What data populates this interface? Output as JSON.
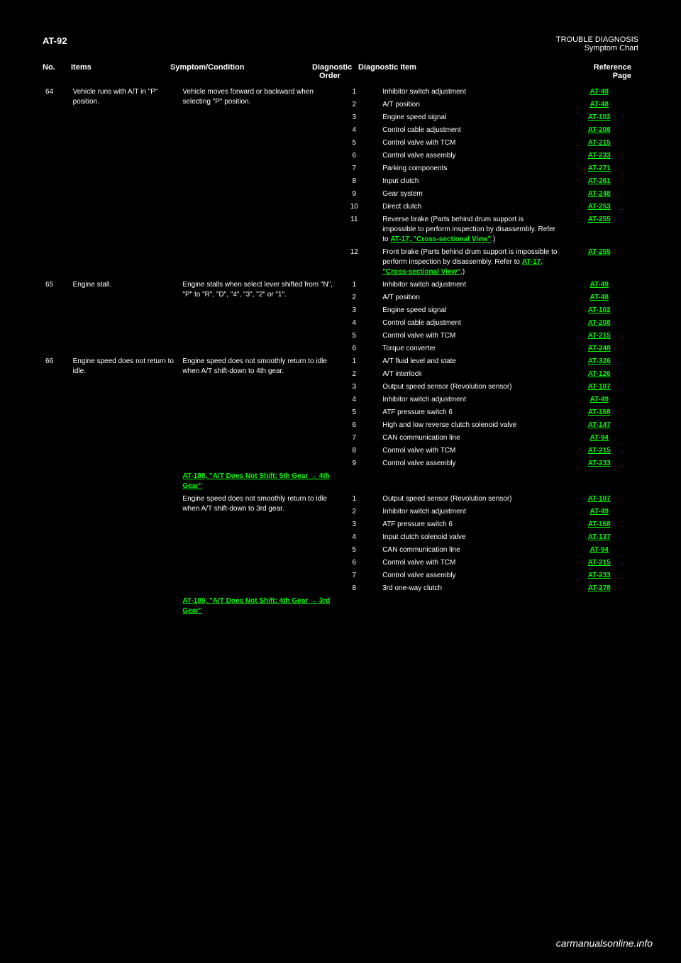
{
  "header": {
    "pageId": "AT-92",
    "section": "TROUBLE DIAGNOSIS",
    "subsection": "Symptom Chart"
  },
  "columnHeaders": {
    "no": "No.",
    "items": "Items",
    "symptomCondition": "Symptom/Condition",
    "diagOrder": "Diagnostic\nOrder",
    "diagItem": "Diagnostic Item",
    "refPage": "Reference\nPage"
  },
  "footer": "carmanualsonline.info",
  "rows": [
    {
      "no": "64",
      "item": "Vehicle runs with A/T in \"P\" position.",
      "symptom": "Vehicle moves forward or backward when selecting \"P\" position.",
      "lines": [
        {
          "order": "1",
          "diag": "Inhibitor switch adjustment",
          "ref": "AT-49",
          "link": true
        },
        {
          "order": "2",
          "diag": "A/T position",
          "ref": "AT-48",
          "link": true
        },
        {
          "order": "3",
          "diag": "Engine speed signal",
          "ref": "AT-102",
          "link": true
        },
        {
          "order": "4",
          "diag": "Control cable adjustment",
          "ref": "AT-208",
          "link": true
        },
        {
          "order": "5",
          "diag": "Control valve with TCM",
          "ref": "AT-215",
          "link": true
        },
        {
          "order": "6",
          "diag": "Control valve assembly",
          "ref": "AT-233",
          "link": true
        },
        {
          "order": "7",
          "diag": "Parking components",
          "ref": "AT-271",
          "link": true
        },
        {
          "order": "8",
          "diag": "Input clutch",
          "ref": "AT-261",
          "link": true
        },
        {
          "order": "9",
          "diag": "Gear system",
          "ref": "AT-248",
          "link": true
        },
        {
          "order": "10",
          "diag": "Direct clutch",
          "ref": "AT-253",
          "link": true
        }
      ]
    },
    {
      "no": "",
      "item": "",
      "symptom": "",
      "lines": [
        {
          "order": "11",
          "diag": "Reverse brake (Parts behind drum support is impossible to perform inspection by disassembly. Refer to <a class='link' data-name='link-at17a' data-interactable='true' href='#'>AT-17, \"Cross-sectional View\"</a>.)",
          "ref": "AT-255",
          "link": true
        },
        {
          "order": "12",
          "diag": "Front brake (Parts behind drum support is impossible to perform inspection by disassembly. Refer to <a class='link' data-name='link-at17b' data-interactable='true' href='#'>AT-17, \"Cross-sectional View\"</a>.)",
          "ref": "AT-255",
          "link": true
        }
      ]
    },
    {
      "no": "65",
      "item": "Engine stall.",
      "symptom": "Engine stalls when select lever shifted from \"N\", \"P\" to \"R\", \"D\", \"4\", \"3\", \"2\" or \"1\".",
      "lines": [
        {
          "order": "1",
          "diag": "Inhibitor switch adjustment",
          "ref": "AT-49",
          "link": true
        },
        {
          "order": "2",
          "diag": "A/T position",
          "ref": "AT-48",
          "link": true
        },
        {
          "order": "3",
          "diag": "Engine speed signal",
          "ref": "AT-102",
          "link": true
        },
        {
          "order": "4",
          "diag": "Control cable adjustment",
          "ref": "AT-208",
          "link": true
        },
        {
          "order": "5",
          "diag": "Control valve with TCM",
          "ref": "AT-215",
          "link": true
        },
        {
          "order": "6",
          "diag": "Torque converter",
          "ref": "AT-248",
          "link": true
        }
      ]
    },
    {
      "no": "66",
      "item": "Engine speed does not return to idle.",
      "symptom": "Engine speed does not smoothly return to idle when A/T shift-down to 4th gear.",
      "lines": [
        {
          "order": "1",
          "diag": "A/T fluid level and state",
          "ref": "AT-326",
          "link": true
        },
        {
          "order": "2",
          "diag": "A/T interlock",
          "ref": "AT-126",
          "link": true
        },
        {
          "order": "3",
          "diag": "Output speed sensor (Revolution sensor)",
          "ref": "AT-107",
          "link": true
        },
        {
          "order": "4",
          "diag": "Inhibitor switch adjustment",
          "ref": "AT-49",
          "link": true
        },
        {
          "order": "5",
          "diag": "ATF pressure switch 6",
          "ref": "AT-168",
          "link": true
        },
        {
          "order": "6",
          "diag": "High and low reverse clutch solenoid valve",
          "ref": "AT-147",
          "link": true
        },
        {
          "order": "7",
          "diag": "CAN communication line",
          "ref": "AT-94",
          "link": true
        },
        {
          "order": "8",
          "diag": "Control valve with TCM",
          "ref": "AT-215",
          "link": true
        },
        {
          "order": "9",
          "diag": "Control valve assembly",
          "ref": "AT-233",
          "link": true
        }
      ]
    },
    {
      "no": "",
      "item": "",
      "symptom": "<a class='link' data-name='link-at188' data-interactable='true' href='#'>AT-188, \"A/T Does Not Shift: 5th Gear → 4th Gear\"</a>",
      "lines": []
    },
    {
      "no": "",
      "item": "",
      "symptom": "Engine speed does not smoothly return to idle when A/T shift-down to 3rd gear.",
      "lines": [
        {
          "order": "1",
          "diag": "Output speed sensor (Revolution sensor)",
          "ref": "AT-107",
          "link": true
        },
        {
          "order": "2",
          "diag": "Inhibitor switch adjustment",
          "ref": "AT-49",
          "link": true
        },
        {
          "order": "3",
          "diag": "ATF pressure switch 6",
          "ref": "AT-168",
          "link": true
        },
        {
          "order": "4",
          "diag": "Input clutch solenoid valve",
          "ref": "AT-137",
          "link": true
        },
        {
          "order": "5",
          "diag": "CAN communication line",
          "ref": "AT-94",
          "link": true
        },
        {
          "order": "6",
          "diag": "Control valve with TCM",
          "ref": "AT-215",
          "link": true
        },
        {
          "order": "7",
          "diag": "Control valve assembly",
          "ref": "AT-233",
          "link": true
        },
        {
          "order": "8",
          "diag": "3rd one-way clutch",
          "ref": "AT-278",
          "link": true
        }
      ]
    },
    {
      "no": "",
      "item": "",
      "symptom": "<a class='link' data-name='link-at189' data-interactable='true' href='#'>AT-189, \"A/T Does Not Shift: 4th Gear → 3rd Gear\"</a>",
      "lines": []
    }
  ]
}
